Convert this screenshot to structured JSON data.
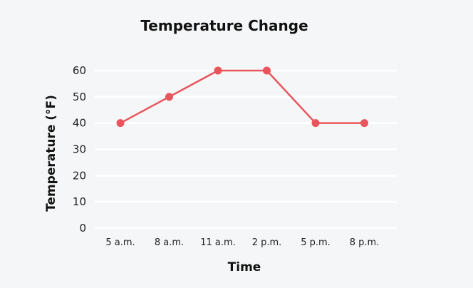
{
  "chart_data": {
    "type": "line",
    "title": "Temperature Change",
    "xlabel": "Time",
    "ylabel": "Temperature (°F)",
    "categories": [
      "5 a.m.",
      "8 a.m.",
      "11 a.m.",
      "2 p.m.",
      "5 p.m.",
      "8 p.m."
    ],
    "series": [
      {
        "values": [
          40,
          50,
          60,
          60,
          40,
          40
        ]
      }
    ],
    "yticks": [
      0,
      10,
      20,
      30,
      40,
      50,
      60
    ],
    "ylim": [
      0,
      60
    ],
    "grid": true,
    "legend": "none",
    "colors": {
      "line": "#e8555c",
      "grid": "#ffffff",
      "background": "#f5f6f7"
    }
  }
}
